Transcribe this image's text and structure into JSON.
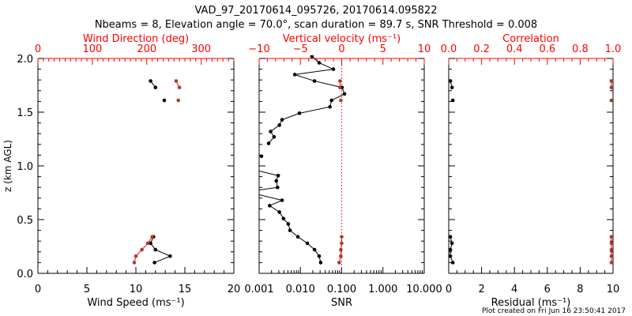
{
  "title_line1": "VAD_97_20170614_095726, 20170614.095822",
  "title_line2": "Nbeams = 8, Elevation angle = 70.0°, scan duration = 89.7 s, SNR Threshold = 0.008",
  "footer": "Plot created on Fri Jun 16 23:50:41 2017",
  "colors": {
    "axis": "#000000",
    "top_axis": "#ff0000",
    "black_series": "#000000",
    "red_series": "#b0382a",
    "reference_line": "#ff0000"
  },
  "chart_data": [
    {
      "type": "line",
      "panel": "wind",
      "ylabel": "z (km AGL)",
      "ylim": [
        0,
        2.0
      ],
      "yticks": [
        "0.0",
        "0.5",
        "1.0",
        "1.5",
        "2.0"
      ],
      "xlabel": "Wind Speed (ms⁻¹)",
      "xlim": [
        0,
        20
      ],
      "xticks": [
        "0",
        "5",
        "10",
        "15",
        "20"
      ],
      "top_xlabel": "Wind Direction (deg)",
      "top_xlim": [
        0,
        360
      ],
      "top_xticks": [
        "0",
        "100",
        "200",
        "300"
      ],
      "series": [
        {
          "name": "Wind Speed",
          "axis": "bottom",
          "color": "black",
          "segments": [
            [
              [
                11.5,
                1.79
              ],
              [
                12.0,
                1.73
              ]
            ],
            [
              [
                12.9,
                1.61
              ]
            ],
            [
              [
                11.8,
                0.34
              ],
              [
                11.5,
                0.28
              ],
              [
                12.0,
                0.22
              ],
              [
                13.5,
                0.16
              ],
              [
                11.9,
                0.1
              ]
            ]
          ]
        },
        {
          "name": "Wind Direction",
          "axis": "top",
          "color": "red",
          "segments": [
            [
              [
                254,
                1.79
              ],
              [
                260,
                1.73
              ]
            ],
            [
              [
                258,
                1.61
              ]
            ],
            [
              [
                210,
                0.34
              ],
              [
                202,
                0.28
              ],
              [
                191,
                0.22
              ],
              [
                180,
                0.16
              ],
              [
                177,
                0.1
              ]
            ]
          ]
        }
      ]
    },
    {
      "type": "line",
      "panel": "snr",
      "ylim": [
        0,
        2.0
      ],
      "xlabel": "SNR",
      "xscale": "log",
      "xlim": [
        0.001,
        10
      ],
      "xticks": [
        "0.001",
        "0.010",
        "0.100",
        "1.000",
        "10.000"
      ],
      "top_xlabel": "Vertical velocity (ms⁻¹)",
      "top_xlim": [
        -10,
        10
      ],
      "top_xticks": [
        "−10",
        "−5",
        "0",
        "5",
        "10"
      ],
      "reference_line": {
        "axis": "top",
        "value": 0
      },
      "series": [
        {
          "name": "SNR",
          "axis": "bottom",
          "color": "black",
          "segments": [
            [
              [
                0.031,
                0.1
              ],
              [
                0.0285,
                0.16
              ],
              [
                0.022,
                0.22
              ],
              [
                0.0147,
                0.28
              ],
              [
                0.0087,
                0.34
              ],
              [
                0.0056,
                0.4
              ],
              [
                0.0051,
                0.46
              ],
              [
                0.0039,
                0.51
              ],
              [
                0.0031,
                0.57
              ],
              [
                0.0018,
                0.63
              ],
              [
                0.0036,
                0.68
              ],
              [
                0.0005,
                0.76
              ],
              [
                0.0028,
                0.8
              ],
              [
                0.0026,
                0.86
              ],
              [
                0.0029,
                0.91
              ],
              [
                0.0005,
                0.98
              ]
            ],
            [
              [
                0.00114,
                1.09
              ]
            ],
            [
              [
                0.0017,
                1.21
              ],
              [
                0.0023,
                1.27
              ],
              [
                0.0019,
                1.32
              ],
              [
                0.0031,
                1.38
              ],
              [
                0.0036,
                1.43
              ],
              [
                0.0095,
                1.49
              ],
              [
                0.052,
                1.55
              ],
              [
                0.057,
                1.61
              ],
              [
                0.117,
                1.67
              ],
              [
                0.102,
                1.73
              ],
              [
                0.022,
                1.79
              ],
              [
                0.0073,
                1.85
              ],
              [
                0.063,
                1.9
              ],
              [
                0.0285,
                1.96
              ],
              [
                0.019,
                2.02
              ]
            ]
          ]
        },
        {
          "name": "Vertical velocity",
          "axis": "top",
          "color": "red",
          "segments": [
            [
              [
                -0.2,
                1.79
              ],
              [
                -0.2,
                1.73
              ]
            ],
            [
              [
                -0.1,
                1.61
              ]
            ],
            [
              [
                0.0,
                0.34
              ],
              [
                0.0,
                0.28
              ],
              [
                -0.1,
                0.22
              ],
              [
                -0.1,
                0.16
              ],
              [
                -0.3,
                0.1
              ]
            ]
          ]
        }
      ]
    },
    {
      "type": "line",
      "panel": "residual",
      "ylim": [
        0,
        2.0
      ],
      "xlabel": "Residual (ms⁻¹)",
      "xlim": [
        0,
        10
      ],
      "xticks": [
        "0",
        "2",
        "4",
        "6",
        "8",
        "10"
      ],
      "top_xlabel": "Correlation",
      "top_xlim": [
        0,
        1
      ],
      "top_xticks": [
        "0.0",
        "0.2",
        "0.4",
        "0.6",
        "0.8",
        "1.0"
      ],
      "series": [
        {
          "name": "Residual",
          "axis": "bottom",
          "color": "black",
          "segments": [
            [
              [
                0.1,
                1.79
              ],
              [
                0.2,
                1.73
              ]
            ],
            [
              [
                0.25,
                1.61
              ]
            ],
            [
              [
                0.1,
                0.34
              ],
              [
                0.2,
                0.28
              ],
              [
                0.1,
                0.22
              ],
              [
                0.1,
                0.16
              ],
              [
                0.25,
                0.1
              ]
            ]
          ]
        },
        {
          "name": "Correlation",
          "axis": "top",
          "color": "red",
          "segments": [
            [
              [
                0.99,
                1.79
              ],
              [
                0.99,
                1.73
              ]
            ],
            [
              [
                0.99,
                1.61
              ]
            ],
            [
              [
                0.99,
                0.34
              ],
              [
                0.99,
                0.28
              ],
              [
                0.99,
                0.22
              ],
              [
                0.99,
                0.16
              ],
              [
                0.99,
                0.1
              ]
            ]
          ]
        }
      ]
    }
  ]
}
